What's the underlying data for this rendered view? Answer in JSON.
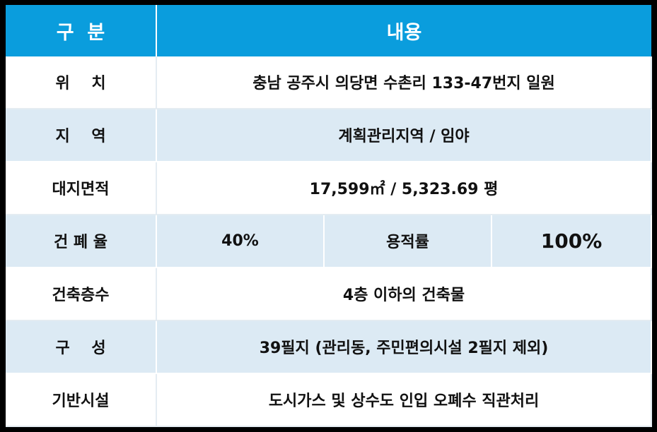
{
  "header": {
    "col1": "구  분",
    "col2": "내용"
  },
  "rows": [
    {
      "label": "위    치",
      "value": "충남 공주시 의당면 수촌리 133-47번지 일원"
    },
    {
      "label": "지    역",
      "value": "계획관리지역 / 임야"
    },
    {
      "label": "대지면적",
      "value": "17,599㎡ / 5,323.69 평"
    },
    {
      "label": "건 폐 율",
      "value": "40%",
      "sub_label": "용적률",
      "sub_value": "100%"
    },
    {
      "label": "건축층수",
      "value": "4층 이하의 건축물"
    },
    {
      "label": "구    성",
      "value": "39필지 (관리동, 주민편의시설 2필지 제외)"
    },
    {
      "label": "기반시설",
      "value": "도시가스 및 상수도 인입 오폐수 직관처리"
    }
  ],
  "colors": {
    "header_bg": "#0a9ddd",
    "stripe_bg": "#dceaf4"
  }
}
